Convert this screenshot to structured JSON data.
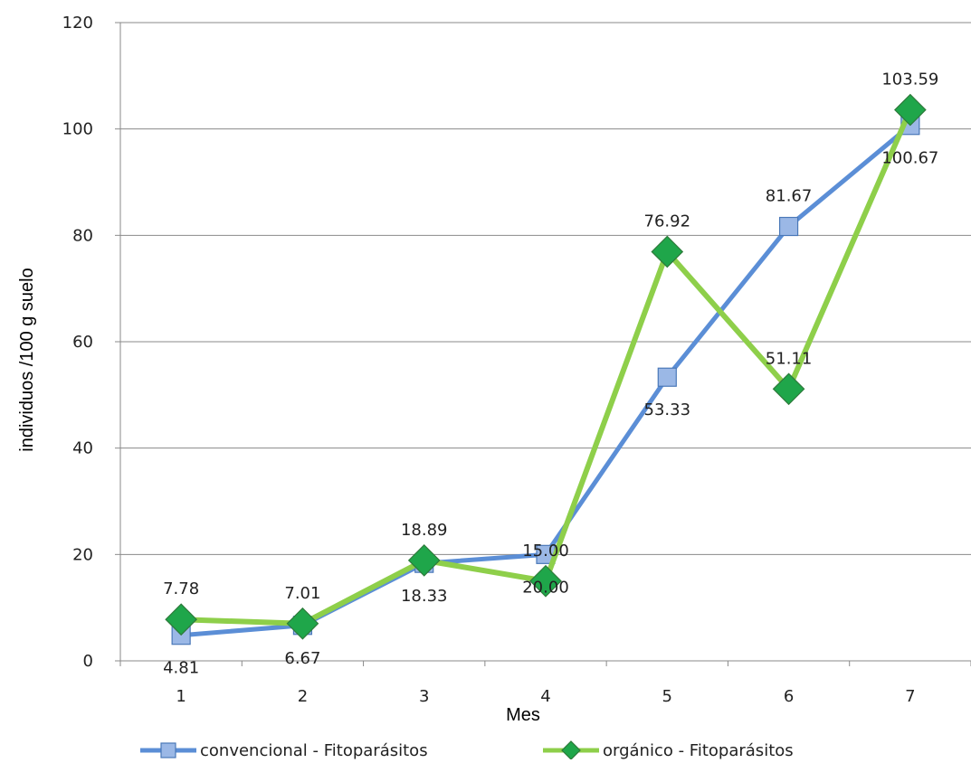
{
  "chart_data": {
    "type": "line",
    "title": "",
    "xlabel": "Mes",
    "ylabel": "individuos /100 g suelo",
    "categories": [
      "1",
      "2",
      "3",
      "4",
      "5",
      "6",
      "7"
    ],
    "yticks": [
      "0",
      "20",
      "40",
      "60",
      "80",
      "100",
      "120"
    ],
    "ylim": [
      0,
      120
    ],
    "grid": true,
    "legend_position": "bottom",
    "series": [
      {
        "name": "convencional - Fitoparásitos",
        "values": [
          4.81,
          6.67,
          18.33,
          20.0,
          53.33,
          81.67,
          100.67
        ],
        "labels": [
          "4.81",
          "6.67",
          "18.33",
          "20.00",
          "53.33",
          "81.67",
          "100.67"
        ],
        "line_color": "#5B8ED6",
        "marker": "square",
        "marker_color": "#9BB8E6"
      },
      {
        "name": "orgánico - Fitoparásitos",
        "values": [
          7.78,
          7.01,
          18.89,
          15.0,
          76.92,
          51.11,
          103.59
        ],
        "labels": [
          "7.78",
          "7.01",
          "18.89",
          "15.00",
          "76.92",
          "51.11",
          "103.59"
        ],
        "line_color": "#8ECF4A",
        "marker": "diamond",
        "marker_color": "#1FA64A"
      }
    ]
  }
}
